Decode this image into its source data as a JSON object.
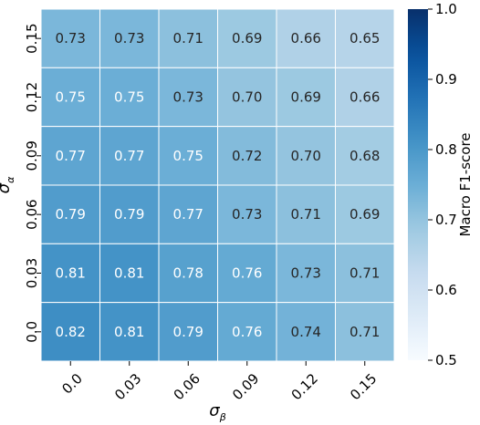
{
  "chart_data": {
    "type": "heatmap",
    "x_labels": [
      "0.0",
      "0.03",
      "0.06",
      "0.09",
      "0.12",
      "0.15"
    ],
    "y_labels": [
      "0.15",
      "0.12",
      "0.09",
      "0.06",
      "0.03",
      "0.0"
    ],
    "values": [
      [
        0.73,
        0.73,
        0.71,
        0.69,
        0.66,
        0.65
      ],
      [
        0.75,
        0.75,
        0.73,
        0.7,
        0.69,
        0.66
      ],
      [
        0.77,
        0.77,
        0.75,
        0.72,
        0.7,
        0.68
      ],
      [
        0.79,
        0.79,
        0.77,
        0.73,
        0.71,
        0.69
      ],
      [
        0.81,
        0.81,
        0.78,
        0.76,
        0.73,
        0.71
      ],
      [
        0.82,
        0.81,
        0.79,
        0.76,
        0.74,
        0.71
      ]
    ],
    "value_labels": [
      [
        "0.73",
        "0.73",
        "0.71",
        "0.69",
        "0.66",
        "0.65"
      ],
      [
        "0.75",
        "0.75",
        "0.73",
        "0.70",
        "0.69",
        "0.66"
      ],
      [
        "0.77",
        "0.77",
        "0.75",
        "0.72",
        "0.70",
        "0.68"
      ],
      [
        "0.79",
        "0.79",
        "0.77",
        "0.73",
        "0.71",
        "0.69"
      ],
      [
        "0.81",
        "0.81",
        "0.78",
        "0.76",
        "0.73",
        "0.71"
      ],
      [
        "0.82",
        "0.81",
        "0.79",
        "0.76",
        "0.74",
        "0.71"
      ]
    ],
    "xlabel": {
      "symbol": "σ",
      "subscript": "β"
    },
    "ylabel": {
      "symbol": "σ",
      "subscript": "α"
    },
    "colorbar": {
      "label": "Macro F1-score",
      "range": [
        0.5,
        1.0
      ],
      "ticks": [
        0.5,
        0.6,
        0.7,
        0.8,
        0.9,
        1.0
      ],
      "tick_labels": [
        "0.5",
        "0.6",
        "0.7",
        "0.8",
        "0.9",
        "1.0"
      ],
      "colormap": "Blues"
    },
    "annotation_color_light": "#ffffff",
    "annotation_color_dark": "#262626",
    "grid_line_color": "#ffffff"
  }
}
